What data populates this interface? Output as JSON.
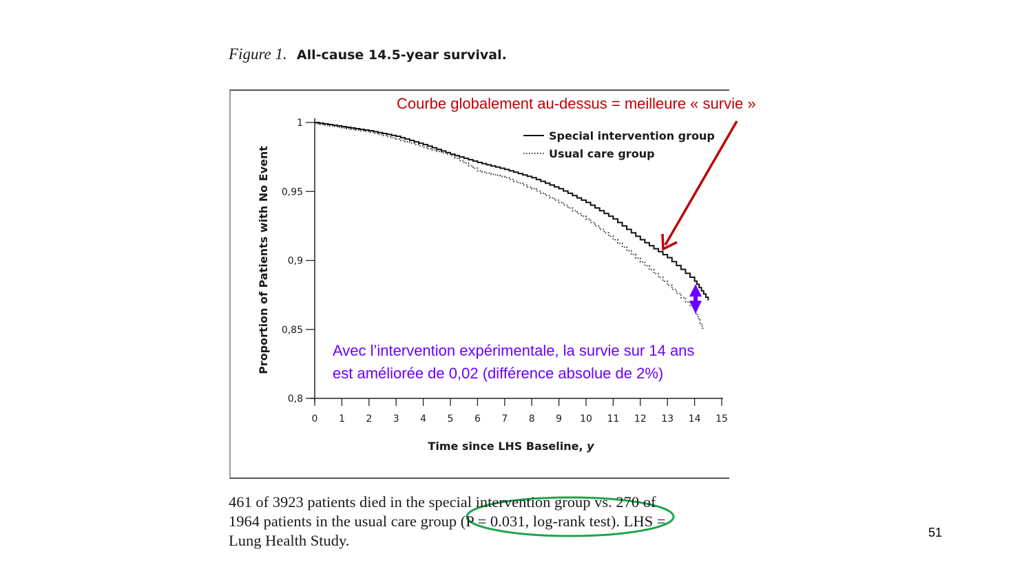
{
  "figure": {
    "number_label": "Figure 1.",
    "title": "All-cause 14.5-year survival."
  },
  "annotations": {
    "top_note": "Courbe globalement au-dessus = meilleure « survie »",
    "difference_note_line1": "Avec l’intervention expérimentale, la survie sur 14 ans",
    "difference_note_line2": "est améliorée de 0,02 (différence absolue de 2%)",
    "top_note_color": "#c00000",
    "difference_note_color": "#6a00ff",
    "highlight_ellipse_color": "#1aa64a"
  },
  "caption": {
    "line1": "461 of 3923 patients died in the special intervention group vs. 270 of",
    "line2": "1964 patients in the usual care group (P = 0.031, log-rank test). LHS =",
    "line3": "Lung Health Study."
  },
  "page_number": "51",
  "chart_data": {
    "type": "line",
    "title": "All-cause 14.5-year survival.",
    "xlabel": "Time since LHS Baseline, y",
    "ylabel": "Proportion of Patients with No Event",
    "xlim": [
      0,
      15
    ],
    "ylim": [
      0.8,
      1.0
    ],
    "x_ticks": [
      "0",
      "1",
      "2",
      "3",
      "4",
      "5",
      "6",
      "7",
      "8",
      "9",
      "10",
      "11",
      "12",
      "13",
      "14",
      "15"
    ],
    "y_ticks": [
      "0,8",
      "0,85",
      "0,9",
      "0,95",
      "1"
    ],
    "grid": false,
    "legend_position": "upper right",
    "series": [
      {
        "name": "Special intervention group",
        "style": "solid",
        "x": [
          0,
          1,
          2,
          3,
          4,
          5,
          6,
          7,
          8,
          9,
          10,
          11,
          12,
          13,
          14,
          14.5
        ],
        "values": [
          1.0,
          0.997,
          0.994,
          0.99,
          0.984,
          0.977,
          0.971,
          0.966,
          0.96,
          0.952,
          0.942,
          0.93,
          0.915,
          0.902,
          0.885,
          0.871
        ]
      },
      {
        "name": "Usual care group",
        "style": "dotted",
        "x": [
          0,
          1,
          2,
          3,
          4,
          5,
          6,
          7,
          8,
          9,
          10,
          11,
          12,
          13,
          14,
          14.3
        ],
        "values": [
          0.999,
          0.996,
          0.993,
          0.988,
          0.982,
          0.976,
          0.965,
          0.96,
          0.952,
          0.942,
          0.93,
          0.915,
          0.899,
          0.882,
          0.864,
          0.85
        ]
      }
    ],
    "annotations": [
      "Courbe globalement au-dessus = meilleure « survie »",
      "Avec l’intervention expérimentale, la survie sur 14 ans est améliorée de 0,02 (différence absolue de 2%)"
    ]
  }
}
